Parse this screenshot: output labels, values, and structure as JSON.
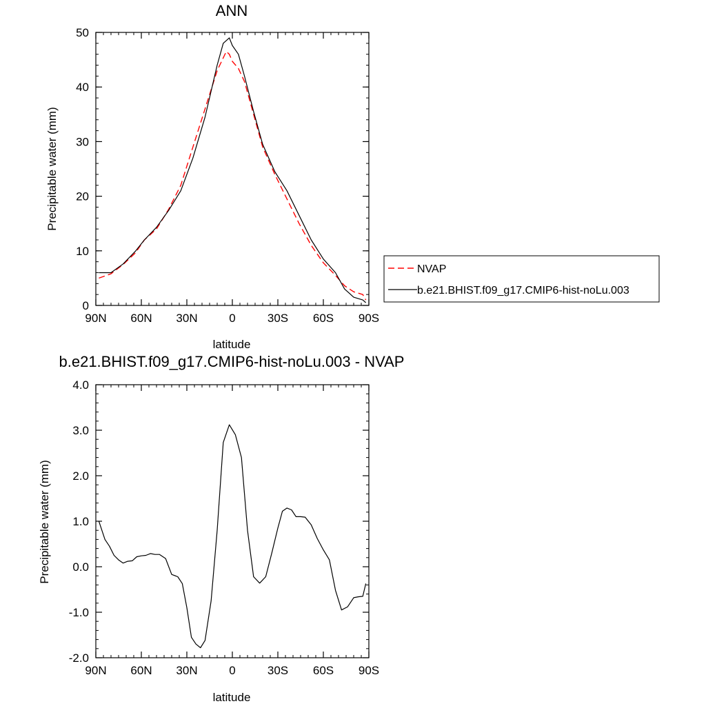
{
  "chart_data": [
    {
      "type": "line",
      "title": "ANN",
      "xlabel": "latitude",
      "ylabel": "Precipitable water (mm)",
      "xlim": [
        90,
        -90
      ],
      "ylim": [
        0,
        50
      ],
      "xticks": [
        90,
        60,
        30,
        0,
        -30,
        -60,
        -90
      ],
      "xtick_labels": [
        "90N",
        "60N",
        "30N",
        "0",
        "30S",
        "60S",
        "90S"
      ],
      "yticks": [
        0,
        10,
        20,
        30,
        40,
        50
      ],
      "ytick_labels": [
        "0",
        "10",
        "20",
        "30",
        "40",
        "50"
      ],
      "legend": {
        "location": "right",
        "entries": [
          "NVAP",
          "b.e21.BHIST.f09_g17.CMIP6-hist-noLu.003"
        ]
      },
      "series": [
        {
          "name": "NVAP",
          "color": "#ff0000",
          "style": "dashed",
          "x": [
            88,
            80,
            72,
            64,
            58,
            50,
            42,
            34,
            26,
            18,
            10,
            4,
            2,
            0,
            -4,
            -8,
            -14,
            -20,
            -28,
            -36,
            -44,
            -52,
            -60,
            -68,
            -74,
            -80,
            -86,
            -88
          ],
          "y": [
            5.0,
            5.8,
            7.5,
            9.6,
            12.0,
            14.0,
            17.6,
            22.0,
            29.0,
            36.0,
            43.0,
            46.5,
            46.0,
            44.7,
            43.4,
            41.0,
            35.0,
            29.0,
            24.0,
            19.5,
            15.0,
            11.0,
            7.8,
            5.5,
            3.6,
            2.5,
            2.0,
            1.0
          ]
        },
        {
          "name": "b.e21.BHIST.f09_g17.CMIP6-hist-noLu.003",
          "color": "#000000",
          "style": "solid",
          "x": [
            88,
            80,
            72,
            64,
            58,
            50,
            42,
            34,
            26,
            18,
            10,
            6,
            2,
            0,
            -4,
            -8,
            -14,
            -20,
            -28,
            -36,
            -44,
            -52,
            -60,
            -68,
            -74,
            -80,
            -86,
            -88
          ],
          "y": [
            6.0,
            6.0,
            7.6,
            9.9,
            12.0,
            14.3,
            17.4,
            21.0,
            27.0,
            34.5,
            44.0,
            48.0,
            49.0,
            47.6,
            46.0,
            42.0,
            35.5,
            29.5,
            24.5,
            21.0,
            16.5,
            12.0,
            8.5,
            6.0,
            3.0,
            1.5,
            1.0,
            0.5
          ]
        }
      ]
    },
    {
      "type": "line",
      "title": "b.e21.BHIST.f09_g17.CMIP6-hist-noLu.003 - NVAP",
      "xlabel": "latitude",
      "ylabel": "Precipitable water (mm)",
      "xlim": [
        90,
        -90
      ],
      "ylim": [
        -2.0,
        4.0
      ],
      "xticks": [
        90,
        60,
        30,
        0,
        -30,
        -60,
        -90
      ],
      "xtick_labels": [
        "90N",
        "60N",
        "30N",
        "0",
        "30S",
        "60S",
        "90S"
      ],
      "yticks": [
        -2.0,
        -1.0,
        0.0,
        1.0,
        2.0,
        3.0,
        4.0
      ],
      "ytick_labels": [
        "-2.0",
        "-1.0",
        "0.0",
        "1.0",
        "2.0",
        "3.0",
        "4.0"
      ],
      "series": [
        {
          "name": "b.e21.BHIST.f09_g17.CMIP6-hist-noLu.003 - NVAP",
          "color": "#000000",
          "style": "solid",
          "x": [
            88,
            84,
            81,
            78,
            75,
            72,
            69,
            66,
            63,
            60,
            57,
            54,
            51,
            48,
            44,
            40,
            36,
            33,
            30,
            27,
            24,
            21,
            18,
            14,
            10,
            6,
            2,
            -2,
            -6,
            -10,
            -14,
            -18,
            -22,
            -26,
            -30,
            -33,
            -36,
            -39,
            -42,
            -45,
            -48,
            -52,
            -56,
            -60,
            -64,
            -68,
            -72,
            -76,
            -80,
            -83,
            -86,
            -88
          ],
          "y": [
            1.0,
            0.6,
            0.45,
            0.25,
            0.15,
            0.08,
            0.12,
            0.13,
            0.22,
            0.24,
            0.25,
            0.29,
            0.27,
            0.27,
            0.18,
            -0.17,
            -0.22,
            -0.37,
            -0.9,
            -1.55,
            -1.7,
            -1.78,
            -1.62,
            -0.75,
            0.8,
            2.73,
            3.12,
            2.9,
            2.4,
            0.8,
            -0.22,
            -0.36,
            -0.22,
            0.3,
            0.85,
            1.22,
            1.29,
            1.25,
            1.1,
            1.1,
            1.09,
            0.92,
            0.62,
            0.37,
            0.15,
            -0.52,
            -0.95,
            -0.88,
            -0.68,
            -0.66,
            -0.65,
            -0.37
          ]
        }
      ]
    }
  ]
}
